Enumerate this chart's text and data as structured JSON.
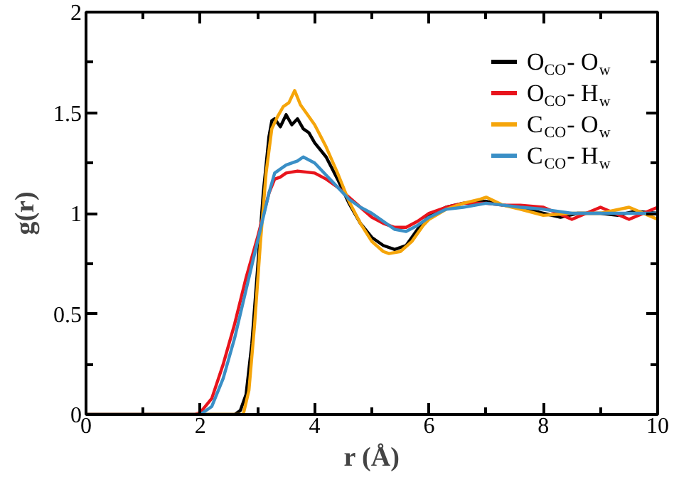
{
  "chart_data": {
    "type": "line",
    "xlabel": "r (Å)",
    "ylabel": "g(r)",
    "xlim": [
      0,
      10
    ],
    "ylim": [
      0,
      2
    ],
    "xticks": [
      0,
      {
        "value": 1,
        "label": null
      },
      2,
      {
        "value": 3,
        "label": null
      },
      4,
      {
        "value": 5,
        "label": null
      },
      6,
      {
        "value": 7,
        "label": null
      },
      8,
      {
        "value": 9,
        "label": null
      },
      10
    ],
    "yticks": [
      0,
      {
        "value": 0.25,
        "label": null
      },
      0.5,
      {
        "value": 0.75,
        "label": null
      },
      1,
      {
        "value": 1.25,
        "label": null
      },
      1.5,
      {
        "value": 1.75,
        "label": null
      },
      2
    ],
    "grid": false,
    "legend": "top right",
    "line_style": "solid",
    "marker": "none",
    "series": [
      {
        "name": "O$_{CO}$- O$_{w}$",
        "color": "#000000",
        "x": [
          0,
          2.6,
          2.7,
          2.8,
          2.9,
          3.0,
          3.1,
          3.2,
          3.25,
          3.3,
          3.4,
          3.5,
          3.6,
          3.7,
          3.8,
          3.9,
          4.0,
          4.2,
          4.4,
          4.6,
          4.8,
          5.0,
          5.2,
          5.4,
          5.6,
          5.8,
          6.0,
          6.3,
          6.6,
          7.0,
          7.3,
          7.6,
          8.0,
          8.3,
          8.6,
          9.0,
          9.3,
          9.6,
          10.0
        ],
        "values": [
          0,
          0,
          0.02,
          0.1,
          0.35,
          0.72,
          1.1,
          1.38,
          1.46,
          1.47,
          1.43,
          1.49,
          1.44,
          1.47,
          1.42,
          1.4,
          1.35,
          1.28,
          1.17,
          1.05,
          0.95,
          0.88,
          0.84,
          0.82,
          0.84,
          0.92,
          0.99,
          1.03,
          1.05,
          1.06,
          1.04,
          1.03,
          1.0,
          0.98,
          1.0,
          1.0,
          0.99,
          1.01,
          1.0
        ]
      },
      {
        "name": "O$_{CO}$- H$_{w}$",
        "color": "#e8141c",
        "x": [
          0,
          1.9,
          2.0,
          2.2,
          2.4,
          2.6,
          2.8,
          3.0,
          3.2,
          3.3,
          3.4,
          3.5,
          3.7,
          4.0,
          4.2,
          4.4,
          4.6,
          4.8,
          5.0,
          5.2,
          5.4,
          5.6,
          5.8,
          6.0,
          6.3,
          6.6,
          7.0,
          7.3,
          7.6,
          8.0,
          8.5,
          9.0,
          9.5,
          10.0
        ],
        "values": [
          0,
          0,
          0.01,
          0.08,
          0.25,
          0.45,
          0.68,
          0.88,
          1.1,
          1.17,
          1.18,
          1.2,
          1.21,
          1.2,
          1.17,
          1.13,
          1.08,
          1.03,
          0.98,
          0.95,
          0.93,
          0.93,
          0.96,
          1.0,
          1.03,
          1.05,
          1.05,
          1.04,
          1.04,
          1.03,
          0.97,
          1.03,
          0.97,
          1.03
        ]
      },
      {
        "name": "C$_{CO}$- O$_{w}$",
        "color": "#f5a50a",
        "x": [
          0,
          2.75,
          2.85,
          2.95,
          3.05,
          3.15,
          3.25,
          3.35,
          3.45,
          3.55,
          3.65,
          3.75,
          3.85,
          4.0,
          4.2,
          4.4,
          4.6,
          4.8,
          5.0,
          5.2,
          5.3,
          5.5,
          5.7,
          5.9,
          6.0,
          6.3,
          6.6,
          6.9,
          7.0,
          7.3,
          7.6,
          8.0,
          8.5,
          9.0,
          9.5,
          10.0
        ],
        "values": [
          0,
          0,
          0.12,
          0.45,
          0.85,
          1.2,
          1.42,
          1.48,
          1.53,
          1.55,
          1.61,
          1.54,
          1.5,
          1.44,
          1.33,
          1.2,
          1.06,
          0.95,
          0.86,
          0.81,
          0.8,
          0.81,
          0.86,
          0.94,
          0.97,
          1.02,
          1.05,
          1.07,
          1.08,
          1.04,
          1.02,
          0.99,
          1.0,
          1.0,
          1.03,
          0.97
        ]
      },
      {
        "name": "C$_{CO}$- H$_{w}$",
        "color": "#3a8fc6",
        "x": [
          0,
          2.0,
          2.2,
          2.4,
          2.6,
          2.8,
          3.0,
          3.2,
          3.3,
          3.5,
          3.7,
          3.8,
          4.0,
          4.2,
          4.4,
          4.6,
          4.8,
          5.0,
          5.2,
          5.4,
          5.6,
          5.8,
          6.0,
          6.3,
          6.6,
          7.0,
          7.3,
          7.6,
          8.0,
          8.5,
          9.0,
          9.5,
          10.0
        ],
        "values": [
          0,
          0,
          0.04,
          0.18,
          0.38,
          0.62,
          0.86,
          1.1,
          1.2,
          1.24,
          1.26,
          1.28,
          1.25,
          1.19,
          1.13,
          1.07,
          1.03,
          1.0,
          0.96,
          0.92,
          0.91,
          0.94,
          0.98,
          1.02,
          1.03,
          1.05,
          1.04,
          1.03,
          1.02,
          1.0,
          1.0,
          1.0,
          1.0
        ]
      }
    ]
  }
}
